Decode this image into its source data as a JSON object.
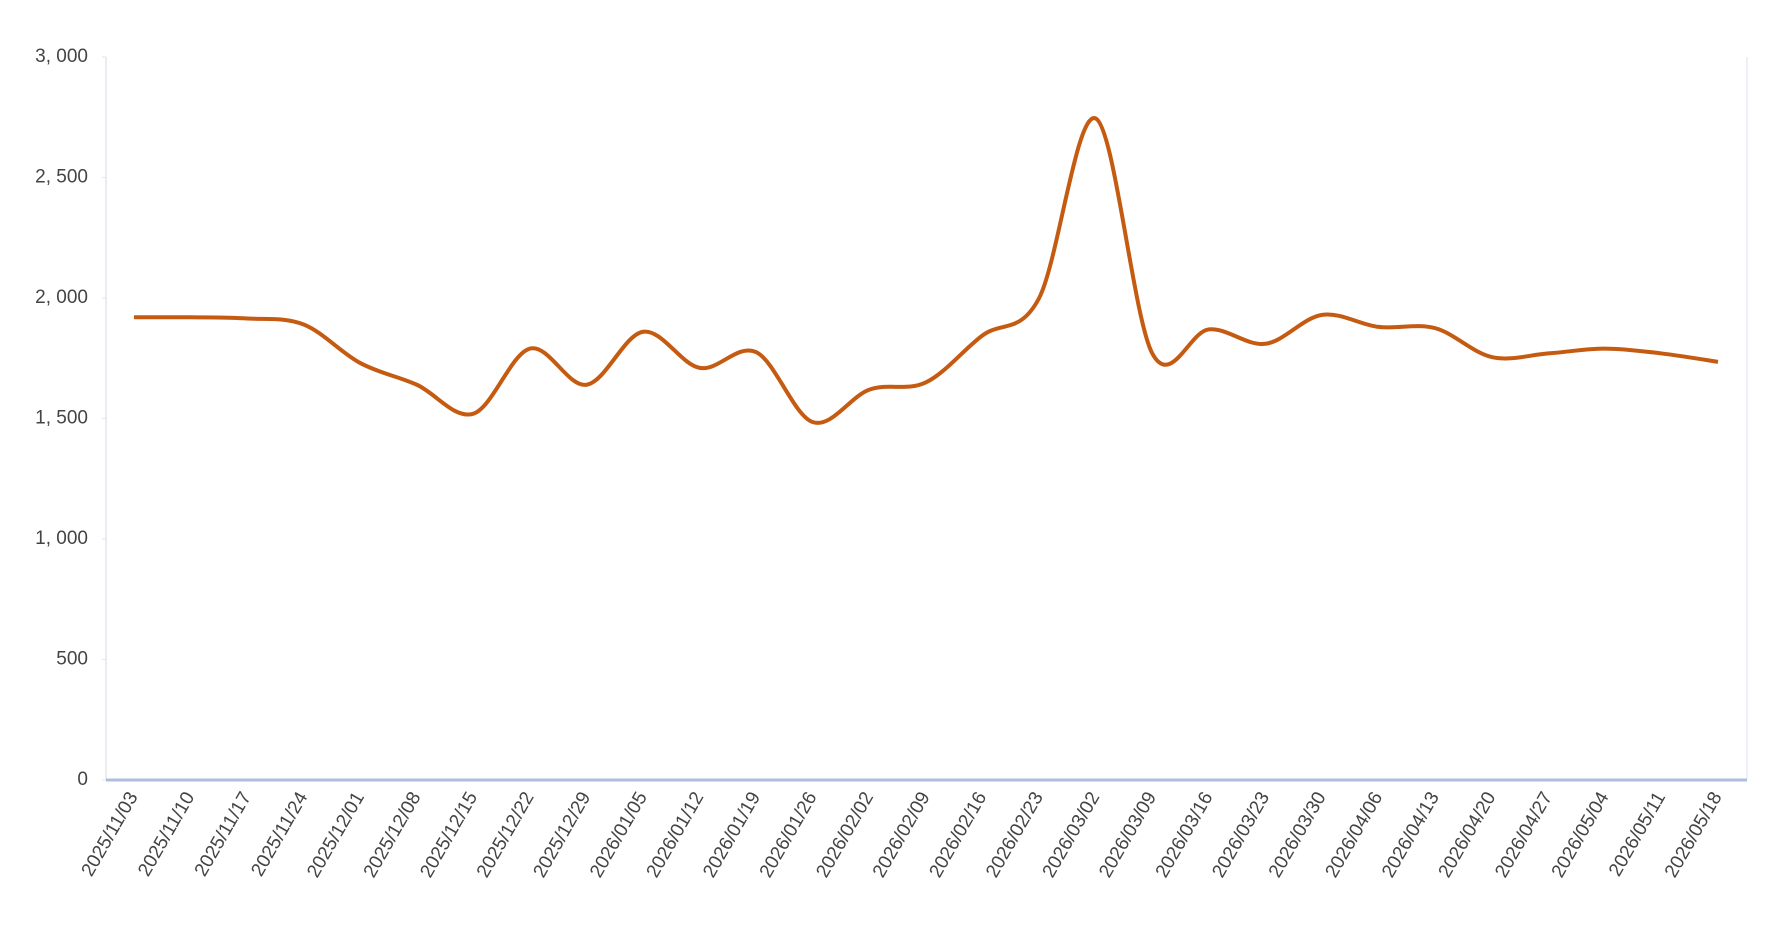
{
  "chart_data": {
    "type": "line",
    "categories": [
      "2025/11/03",
      "2025/11/10",
      "2025/11/17",
      "2025/11/24",
      "2025/12/01",
      "2025/12/08",
      "2025/12/15",
      "2025/12/22",
      "2025/12/29",
      "2026/01/05",
      "2026/01/12",
      "2026/01/19",
      "2026/01/26",
      "2026/02/02",
      "2026/02/09",
      "2026/02/16",
      "2026/02/23",
      "2026/03/02",
      "2026/03/09",
      "2026/03/16",
      "2026/03/23",
      "2026/03/30",
      "2026/04/06",
      "2026/04/13",
      "2026/04/20",
      "2026/04/27",
      "2026/05/04",
      "2026/05/11",
      "2026/05/18"
    ],
    "series": [
      {
        "color": "#c55a11",
        "values": [
          1920,
          1920,
          1915,
          1890,
          1730,
          1640,
          1520,
          1790,
          1640,
          1860,
          1710,
          1775,
          1485,
          1620,
          1650,
          1845,
          2000,
          2745,
          1770,
          1870,
          1810,
          1930,
          1880,
          1875,
          1755,
          1770,
          1790,
          1770,
          1735
        ]
      }
    ],
    "ylim": [
      0,
      3000
    ],
    "yticks": [
      0,
      500,
      {
        "value": 1000,
        "label": "1, 000"
      },
      {
        "value": 1500,
        "label": "1, 500"
      },
      {
        "value": 2000,
        "label": "2, 000"
      },
      {
        "value": 2500,
        "label": "2, 500"
      },
      {
        "value": 3000,
        "label": "3, 000"
      }
    ],
    "smooth": true
  }
}
